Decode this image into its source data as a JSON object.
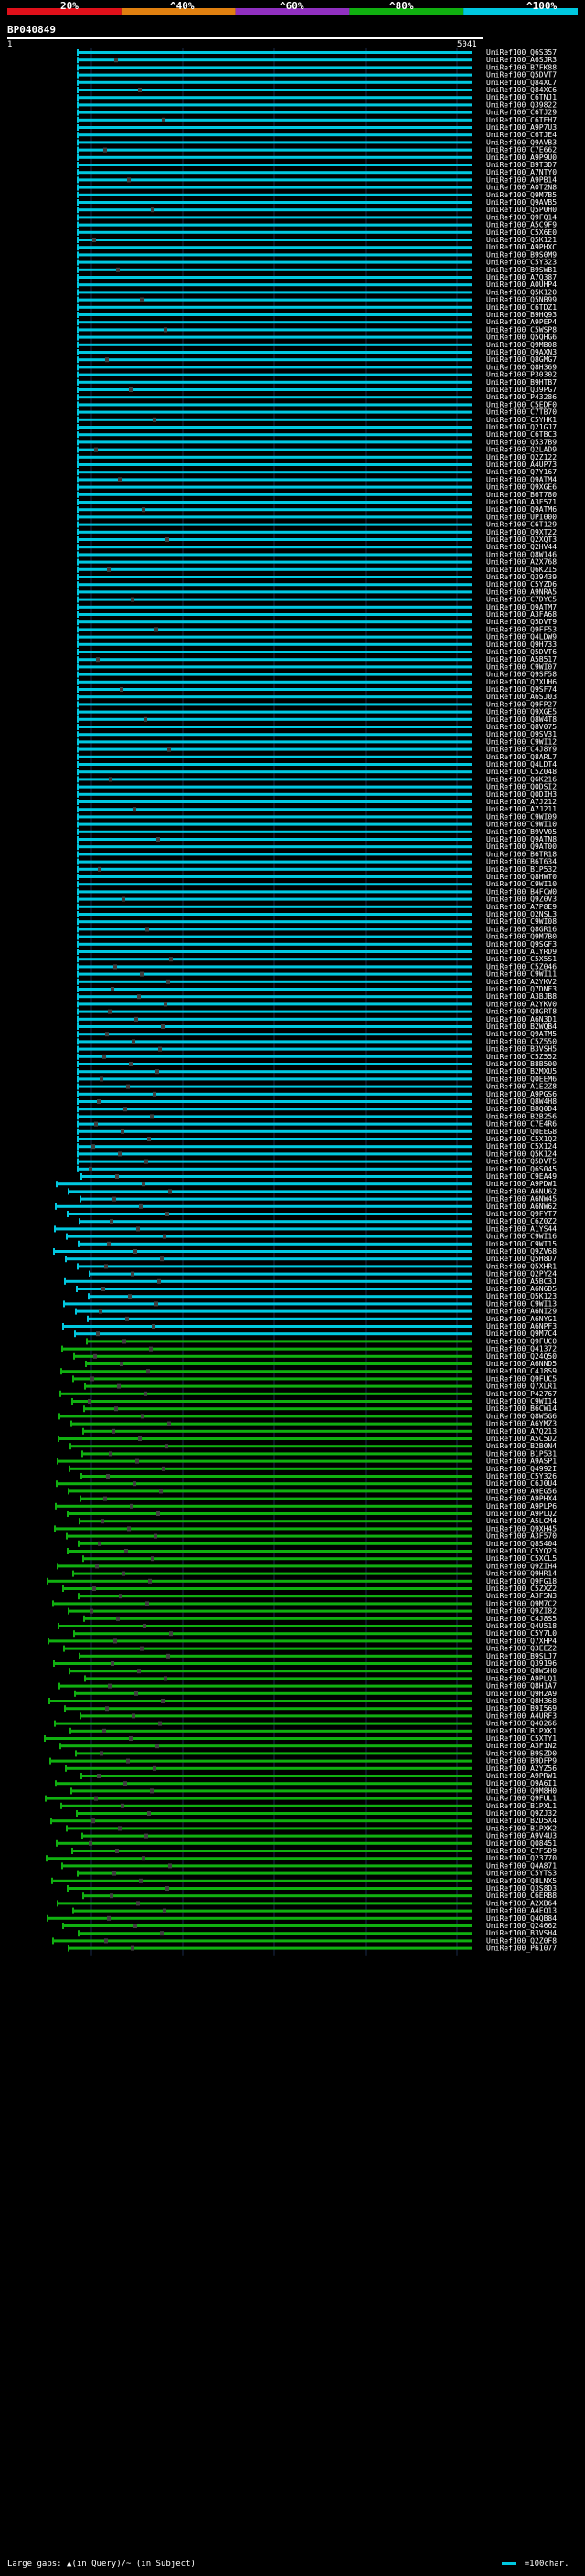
{
  "header": {
    "percent_labels": [
      "20%",
      "^40%",
      "^60%",
      "^80%",
      "^100%"
    ],
    "percent_colors": [
      "#e0101a",
      "#e08010",
      "#9030c0",
      "#10b010",
      "#00c8e0"
    ],
    "query_name": "BP040849",
    "scale_start": "1",
    "scale_end": "5041"
  },
  "footer": {
    "gaps_label": "Large gaps: ▲(in Query)/~ (in Subject)",
    "legend_label": "=100char."
  },
  "chart_data": {
    "type": "alignment-overview",
    "query_length": 5041,
    "colors": {
      "cyan": "#00c8e0",
      "green": "#10b010",
      "marker": "#404040"
    },
    "hits": [
      "UniRef100_Q6S357",
      "UniRef100_A6SJR3",
      "UniRef100_B7FK88",
      "UniRef100_Q5DVT7",
      "UniRef100_Q84XC7",
      "UniRef100_Q84XC6",
      "UniRef100_C6TNJ1",
      "UniRef100_Q39822",
      "UniRef100_C6TJ29",
      "UniRef100_C6TEH7",
      "UniRef100_A9P7U3",
      "UniRef100_C6TJE4",
      "UniRef100_Q9AVB3",
      "UniRef100_C7E662",
      "UniRef100_A9P9U0",
      "UniRef100_B9T3D7",
      "UniRef100_A7NTY0",
      "UniRef100_A9PB14",
      "UniRef100_A0T2N8",
      "UniRef100_Q9M7B5",
      "UniRef100_Q9AVB5",
      "UniRef100_Q5P0H0",
      "UniRef100_Q9FQ14",
      "UniRef100_A5C9F9",
      "UniRef100_C5X6E0",
      "UniRef100_Q5K121",
      "UniRef100_A9PHXC",
      "UniRef100_B9S0M9",
      "UniRef100_C5Y323",
      "UniRef100_B9SWB1",
      "UniRef100_A7Q387",
      "UniRef100_A0UHP4",
      "UniRef100_Q5K120",
      "UniRef100_Q5NB99",
      "UniRef100_C6TDZ1",
      "UniRef100_B9HQ93",
      "UniRef100_A9PEP4",
      "UniRef100_C5WSP8",
      "UniRef100_Q5QHG6",
      "UniRef100_Q9MB08",
      "UniRef100_Q9AXN3",
      "UniRef100_Q8GMG7",
      "UniRef100_Q8H369",
      "UniRef100_P30302",
      "UniRef100_B9HTB7",
      "UniRef100_Q39PG7",
      "UniRef100_P43286",
      "UniRef100_C5EDF0",
      "UniRef100_C7TB70",
      "UniRef100_C5YHK1",
      "UniRef100_Q21GJ7",
      "UniRef100_C6TBC3",
      "UniRef100_Q537B9",
      "UniRef100_Q2LAD9",
      "UniRef100_Q2Z122",
      "UniRef100_A4UP73",
      "UniRef100_Q7Y167",
      "UniRef100_Q9ATM4",
      "UniRef100_Q9XGE6",
      "UniRef100_B6T780",
      "UniRef100_A3F571",
      "UniRef100_Q9ATM6",
      "UniRef100_UPI000",
      "UniRef100_C6T129",
      "UniRef100_Q9XT22",
      "UniRef100_Q2XQT3",
      "UniRef100_Q2HV44",
      "UniRef100_Q8W146",
      "UniRef100_A2X768",
      "UniRef100_Q6K215",
      "UniRef100_Q39439",
      "UniRef100_C5YZD6",
      "UniRef100_A9NRA5",
      "UniRef100_C7DYC5",
      "UniRef100_Q9ATM7",
      "UniRef100_A3FA68",
      "UniRef100_Q5DVT9",
      "UniRef100_Q9FF53",
      "UniRef100_Q4LDW9",
      "UniRef100_Q9H733",
      "UniRef100_Q5DVT6",
      "UniRef100_A5B517",
      "UniRef100_C9WI07",
      "UniRef100_Q9SF58",
      "UniRef100_Q7XUH6",
      "UniRef100_Q9SF74",
      "UniRef100_A6SJ03",
      "UniRef100_Q9FP27",
      "UniRef100_Q9XGE5",
      "UniRef100_Q8W4T8",
      "UniRef100_Q8V075",
      "UniRef100_Q9SV31",
      "UniRef100_C9WI12",
      "UniRef100_C4J8Y9",
      "UniRef100_Q8ARL7",
      "UniRef100_Q4LDT4",
      "UniRef100_C5Z048",
      "UniRef100_Q6K216",
      "UniRef100_Q0DSI2",
      "UniRef100_Q0DIH3",
      "UniRef100_A7J212",
      "UniRef100_A7J211",
      "UniRef100_C9WI09",
      "UniRef100_C9WI10",
      "UniRef100_B9VV05",
      "UniRef100_Q9ATN8",
      "UniRef100_Q9AT00",
      "UniRef100_B6TR18",
      "UniRef100_B6T634",
      "UniRef100_B1P532",
      "UniRef100_Q8HWT0",
      "UniRef100_C9WI10",
      "UniRef100_B4FCW0",
      "UniRef100_Q9Z0V3",
      "UniRef100_A7P8E9",
      "UniRef100_Q2NSL3",
      "UniRef100_C9WI08",
      "UniRef100_Q8GR16",
      "UniRef100_Q9M7B0",
      "UniRef100_Q9SGF3",
      "UniRef100_A1YRD9",
      "UniRef100_C5X5S1",
      "UniRef100_C5Z046",
      "UniRef100_C9WI11",
      "UniRef100_A2YKV2",
      "UniRef100_Q7DNF3",
      "UniRef100_A3BJB8",
      "UniRef100_A2YKV0",
      "UniRef100_Q8GRT8",
      "UniRef100_A6N3D1",
      "UniRef100_B2WQB4",
      "UniRef100_Q9ATM5",
      "UniRef100_C5Z550",
      "UniRef100_B3VSH5",
      "UniRef100_C5Z552",
      "UniRef100_B8B500",
      "UniRef100_B2MXU5",
      "UniRef100_Q0EEM6",
      "UniRef100_A1E2Z8",
      "UniRef100_A9PGS6",
      "UniRef100_Q8W4H8",
      "UniRef100_B8Q0D4",
      "UniRef100_B2B256",
      "UniRef100_C7E4R6",
      "UniRef100_Q0EEG8",
      "UniRef100_C5X1Q2",
      "UniRef100_C5X124",
      "UniRef100_Q5K124",
      "UniRef100_Q5DVT5",
      "UniRef100_Q6S045",
      "UniRef100_C9EA49",
      "UniRef100_A9PDW1",
      "UniRef100_A6NU62",
      "UniRef100_A6NW45",
      "UniRef100_A6NW62",
      "UniRef100_Q9FYT7",
      "UniRef100_C6Z0Z2",
      "UniRef100_A1YS44",
      "UniRef100_C9WI16",
      "UniRef100_C9WI15",
      "UniRef100_Q9ZV68",
      "UniRef100_Q5H8D7",
      "UniRef100_Q5XHR1",
      "UniRef100_Q2PY24",
      "UniRef100_A5BC3J",
      "UniRef100_A6N6D5",
      "UniRef100_Q5K123",
      "UniRef100_C9WI13",
      "UniRef100_A6NI29",
      "UniRef100_A6NYG1",
      "UniRef100_A6NPF3",
      "UniRef100_Q9M7C4",
      "UniRef100_Q9FUC0",
      "UniRef100_Q41372",
      "UniRef100_Q24Q50",
      "UniRef100_A6NND5",
      "UniRef100_C4J8S9",
      "UniRef100_Q9FUC5",
      "UniRef100_Q7XLR1",
      "UniRef100_P42767",
      "UniRef100_C9WI14",
      "UniRef100_B6CW14",
      "UniRef100_Q8W5G6",
      "UniRef100_A6YMZ3",
      "UniRef100_A7Q213",
      "UniRef100_A5C5D2",
      "UniRef100_B2B0N4",
      "UniRef100_B1P531",
      "UniRef100_A9ASP1",
      "UniRef100_Q4992I",
      "UniRef100_C5Y326",
      "UniRef100_C6J0U4",
      "UniRef100_A9EG56",
      "UniRef100_A9PHX4",
      "UniRef100_A9PLP6",
      "UniRef100_A9PLQ2",
      "UniRef100_A5LGM4",
      "UniRef100_Q9XH45",
      "UniRef100_A3F570",
      "UniRef100_Q8S404",
      "UniRef100_C5YQ23",
      "UniRef100_C5XCL5",
      "UniRef100_Q9ZIH4",
      "UniRef100_Q9HR14",
      "UniRef100_Q9FG18",
      "UniRef100_C5ZXZ2",
      "UniRef100_A3F5N3",
      "UniRef100_Q9M7C2",
      "UniRef100_Q9ZI82",
      "UniRef100_C4J8S5",
      "UniRef100_Q4U518",
      "UniRef100_C5Y7L0",
      "UniRef100_Q7XHP4",
      "UniRef100_Q3EEZ2",
      "UniRef100_B9SLJ7",
      "UniRef100_Q39196",
      "UniRef100_Q8W5H0",
      "UniRef100_A9PLQ1",
      "UniRef100_Q8H1A7",
      "UniRef100_Q9H2A9",
      "UniRef100_Q8H368",
      "UniRef100_B9I569",
      "UniRef100_A4URF3",
      "UniRef100_Q40266",
      "UniRef100_B1PXK1",
      "UniRef100_C5XTY1",
      "UniRef100_A3F1N2",
      "UniRef100_B9SZD0",
      "UniRef100_B9DFP9",
      "UniRef100_A2YZ56",
      "UniRef100_A9PRW1",
      "UniRef100_Q9A6I1",
      "UniRef100_Q9M8H0",
      "UniRef100_Q9FUL1",
      "UniRef100_B1PXL1",
      "UniRef100_Q9ZJ32",
      "UniRef100_B2D5X4",
      "UniRef100_B1PXK2",
      "UniRef100_A9V4U3",
      "UniRef100_Q08451",
      "UniRef100_C7F5D9",
      "UniRef100_Q23770",
      "UniRef100_Q4A871",
      "UniRef100_C5YTS3",
      "UniRef100_Q8LNX5",
      "UniRef100_Q3S8D3",
      "UniRef100_C6ERB8",
      "UniRef100_A2XB64",
      "UniRef100_A4EQ13",
      "UniRef100_Q4QB84",
      "UniRef100_Q24662",
      "UniRef100_B3VSH4",
      "UniRef100_Q2Z0F8",
      "UniRef100_P61077"
    ]
  }
}
